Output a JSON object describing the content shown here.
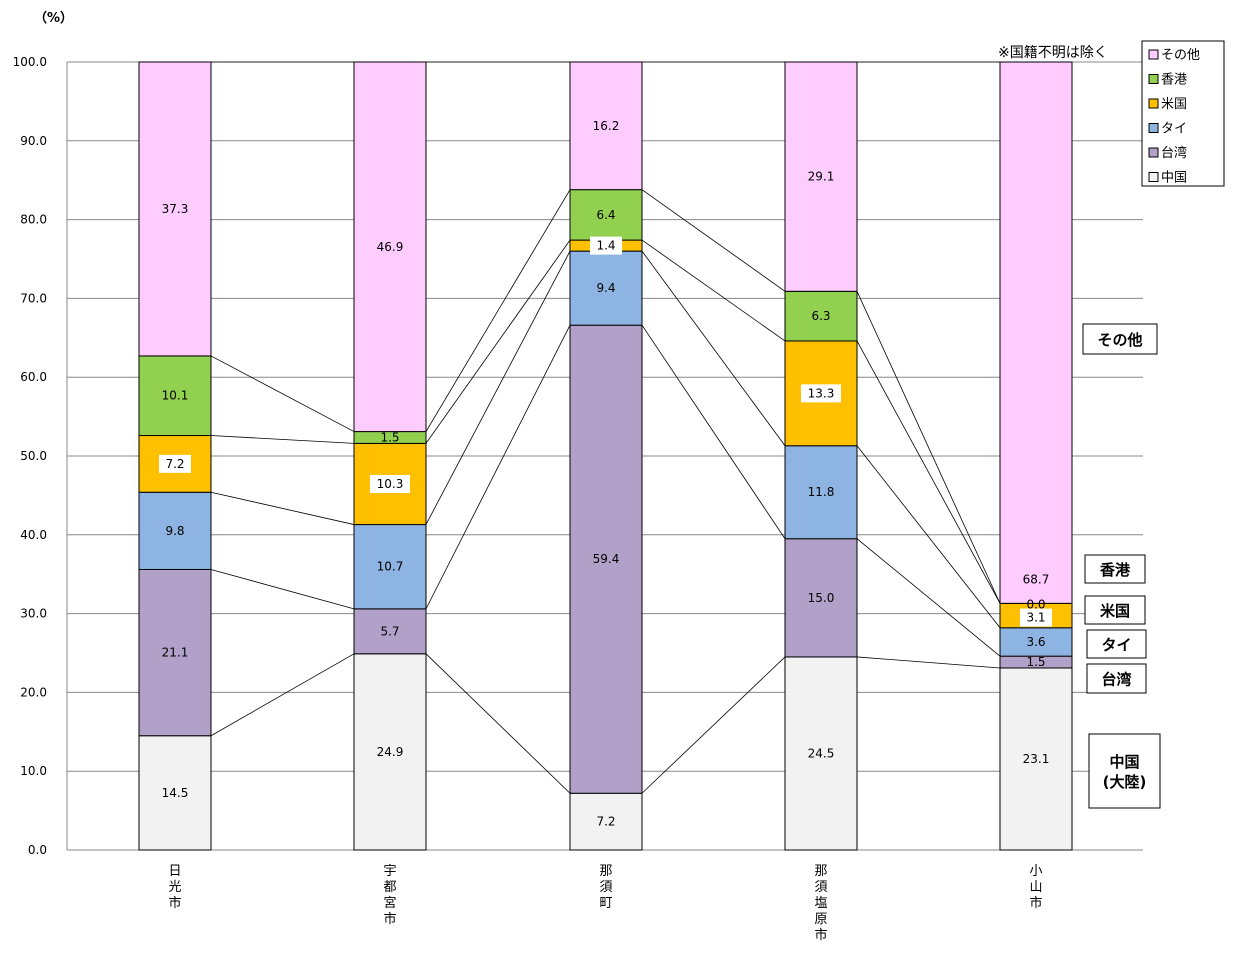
{
  "chart_data": {
    "type": "bar",
    "stacked": true,
    "unit_label": "（%）",
    "note": "※国籍不明は除く",
    "categories": [
      "日光市",
      "宇都宮市",
      "那須町",
      "那須塩原市",
      "小山市"
    ],
    "ylim": [
      0,
      100
    ],
    "yticks": [
      "0.0",
      "10.0",
      "20.0",
      "30.0",
      "40.0",
      "50.0",
      "60.0",
      "70.0",
      "80.0",
      "90.0",
      "100.0"
    ],
    "grid": true,
    "legend_position": "top-right",
    "series": [
      {
        "name": "中国",
        "color": "#f2f2f2",
        "values": [
          14.5,
          24.9,
          7.2,
          24.5,
          23.1
        ],
        "labels": [
          "14.5",
          "24.9",
          "7.2",
          "24.5",
          "23.1"
        ]
      },
      {
        "name": "台湾",
        "color": "#b1a0c7",
        "values": [
          21.1,
          5.7,
          59.4,
          15.0,
          1.5
        ],
        "labels": [
          "21.1",
          "5.7",
          "59.4",
          "15.0",
          "1.5"
        ]
      },
      {
        "name": "タイ",
        "color": "#8db4e2",
        "values": [
          9.8,
          10.7,
          9.4,
          11.8,
          3.6
        ],
        "labels": [
          "9.8",
          "10.7",
          "9.4",
          "11.8",
          "3.6"
        ]
      },
      {
        "name": "米国",
        "color": "#ffc000",
        "values": [
          7.2,
          10.3,
          1.4,
          13.3,
          3.1
        ],
        "labels": [
          "7.2",
          "10.3",
          "1.4",
          "13.3",
          "3.1"
        ]
      },
      {
        "name": "香港",
        "color": "#92d050",
        "values": [
          10.1,
          1.5,
          6.4,
          6.3,
          0.0
        ],
        "labels": [
          "10.1",
          "1.5",
          "6.4",
          "6.3",
          "0.0"
        ]
      },
      {
        "name": "その他",
        "color": "#ffccff",
        "values": [
          37.3,
          46.9,
          16.2,
          29.1,
          68.7
        ],
        "labels": [
          "37.3",
          "46.9",
          "16.2",
          "29.1",
          "68.7"
        ]
      }
    ],
    "legend_order": [
      "その他",
      "香港",
      "米国",
      "タイ",
      "台湾",
      "中国"
    ],
    "side_labels": [
      {
        "series": "その他",
        "text": "その他"
      },
      {
        "series": "香港",
        "text": "香港"
      },
      {
        "series": "米国",
        "text": "米国"
      },
      {
        "series": "タイ",
        "text": "タイ"
      },
      {
        "series": "台湾",
        "text": "台湾"
      },
      {
        "series": "中国",
        "text": "中国\n(大陸)"
      }
    ]
  }
}
